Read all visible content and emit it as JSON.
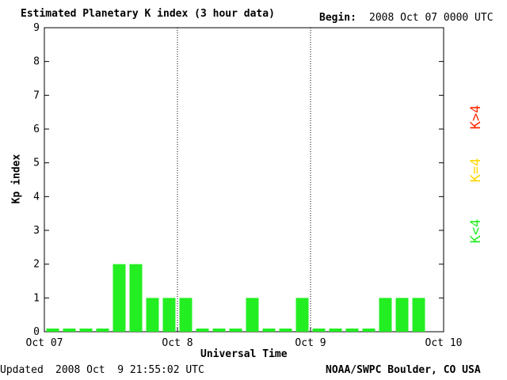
{
  "header": {
    "title": "Estimated Planetary K index (3 hour data)",
    "begin_label": "Begin:",
    "begin_value": "2008 Oct 07 0000 UTC"
  },
  "footer": {
    "updated_label": "Updated",
    "updated_value": "2008 Oct  9 21:55:02 UTC",
    "source": "NOAA/SWPC Boulder, CO USA"
  },
  "legend": {
    "high": "K>4",
    "equal": "K=4",
    "low": "K<4",
    "colors": {
      "high": "#ff2a00",
      "equal": "#ffd700",
      "low": "#22ee22"
    }
  },
  "chart_data": {
    "type": "bar",
    "title": "Estimated Planetary K index (3 hour data)",
    "xlabel": "Universal Time",
    "ylabel": "Kp index",
    "ylim": [
      0,
      9
    ],
    "yticks": [
      "0",
      "1",
      "2",
      "3",
      "4",
      "5",
      "6",
      "7",
      "8",
      "9"
    ],
    "xticks": [
      "Oct 07",
      "Oct 8",
      "Oct 9",
      "Oct 10"
    ],
    "interval_hours": 3,
    "x": [
      "Oct 07 00",
      "Oct 07 03",
      "Oct 07 06",
      "Oct 07 09",
      "Oct 07 12",
      "Oct 07 15",
      "Oct 07 18",
      "Oct 07 21",
      "Oct 08 00",
      "Oct 08 03",
      "Oct 08 06",
      "Oct 08 09",
      "Oct 08 12",
      "Oct 08 15",
      "Oct 08 18",
      "Oct 08 21",
      "Oct 09 00",
      "Oct 09 03",
      "Oct 09 06",
      "Oct 09 09",
      "Oct 09 12",
      "Oct 09 15",
      "Oct 09 18",
      "Oct 09 21"
    ],
    "values": [
      0,
      0,
      0,
      0,
      2,
      2,
      1,
      1,
      1,
      0,
      0,
      0,
      1,
      0,
      0,
      1,
      0,
      0,
      0,
      0,
      1,
      1,
      1,
      null
    ],
    "bar_color": "#22ee22",
    "day_separators": "dotted"
  }
}
